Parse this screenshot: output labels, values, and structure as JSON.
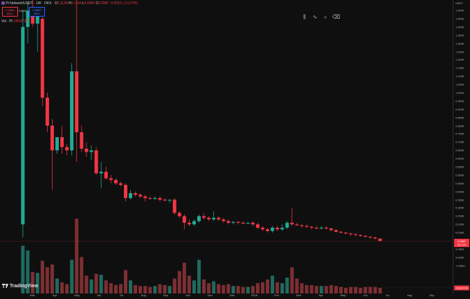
{
  "header": {
    "symbol_icon": "pi-icon",
    "symbol": "Pi Network/USDT · 1W · OKX",
    "ohlc": {
      "o_label": "O",
      "o": "0.1139",
      "h_label": "H",
      "h": "0.1144",
      "l_label": "L",
      "l": "0.0965",
      "c_label": "C",
      "c": "0.0987",
      "change": "-0.0151 (-13.27%)"
    },
    "sell": {
      "price": "0.0986",
      "label": "SELL"
    },
    "spread": "0.0001",
    "buy": {
      "price": "0.0987",
      "label": "BUY"
    },
    "volume_label": "Vol · PI",
    "volume_value": "138.873K"
  },
  "toolbar": [
    {
      "name": "candles-icon",
      "glyph": "⫼"
    },
    {
      "name": "line-icon",
      "glyph": "∿"
    },
    {
      "name": "compare-icon",
      "glyph": "⫟"
    },
    {
      "name": "eraser-icon",
      "glyph": "⌫"
    }
  ],
  "price_axis": {
    "currency": "USDT",
    "ticks": [
      "1.5000",
      "1.4500",
      "1.4000",
      "1.3500",
      "1.3000",
      "1.2500",
      "1.2000",
      "1.1500",
      "1.1000",
      "1.0500",
      "1.0000",
      "0.9500",
      "0.9000",
      "0.8500",
      "0.8000",
      "0.7500",
      "0.7000",
      "0.6500",
      "0.6000",
      "0.5500",
      "0.5000",
      "0.4500",
      "0.4000",
      "0.3500",
      "0.3000",
      "0.2500",
      "0.2000",
      "0.1500",
      "0.1000",
      "0.0500",
      "0.0000",
      "-0.0500"
    ],
    "current_price": "0.0987",
    "countdown": "3d 17h",
    "volume_label": "138.873K"
  },
  "time_axis": [
    "Mar",
    "Apr",
    "May",
    "Jun",
    "Jul",
    "Aug",
    "Sep",
    "Oct",
    "Nov",
    "Dec",
    "2026",
    "Feb",
    "Mar",
    "Apr",
    "May",
    "Jun",
    "Jul",
    "Aug",
    "Sep"
  ],
  "brand": {
    "name": "TradingView",
    "icon": "tradingview-logo-icon"
  },
  "colors": {
    "up": "#22ab94",
    "down": "#f23645",
    "vol_up": "#1e6b5f",
    "vol_down": "#7e2f33",
    "bg": "#0f0f0f"
  },
  "chart_data": {
    "type": "candlestick",
    "x_unit": "week",
    "candles": [
      {
        "o": 0.2,
        "h": 1.5,
        "l": 0.12,
        "c": 1.4,
        "v": 5.1
      },
      {
        "o": 1.4,
        "h": 1.55,
        "l": 1.3,
        "c": 1.5,
        "v": 4.6
      },
      {
        "o": 1.5,
        "h": 1.58,
        "l": 1.4,
        "c": 1.42,
        "v": 2.3
      },
      {
        "o": 1.42,
        "h": 1.47,
        "l": 1.25,
        "c": 1.47,
        "v": 2.2
      },
      {
        "o": 1.45,
        "h": 1.46,
        "l": 0.92,
        "c": 0.97,
        "v": 3.5
      },
      {
        "o": 0.97,
        "h": 1.0,
        "l": 0.76,
        "c": 0.8,
        "v": 2.8
      },
      {
        "o": 0.8,
        "h": 0.84,
        "l": 0.41,
        "c": 0.65,
        "v": 3.1
      },
      {
        "o": 0.65,
        "h": 0.73,
        "l": 0.63,
        "c": 0.73,
        "v": 1.6
      },
      {
        "o": 0.73,
        "h": 0.8,
        "l": 0.63,
        "c": 0.67,
        "v": 1.2
      },
      {
        "o": 0.67,
        "h": 0.69,
        "l": 0.62,
        "c": 0.65,
        "v": 1.0
      },
      {
        "o": 0.65,
        "h": 1.18,
        "l": 0.62,
        "c": 1.13,
        "v": 3.6
      },
      {
        "o": 1.13,
        "h": 1.9,
        "l": 0.58,
        "c": 0.76,
        "v": 8.0
      },
      {
        "o": 0.76,
        "h": 0.8,
        "l": 0.64,
        "c": 0.66,
        "v": 3.9
      },
      {
        "o": 0.66,
        "h": 0.7,
        "l": 0.61,
        "c": 0.64,
        "v": 1.9
      },
      {
        "o": 0.64,
        "h": 0.68,
        "l": 0.59,
        "c": 0.65,
        "v": 1.5
      },
      {
        "o": 0.65,
        "h": 0.67,
        "l": 0.5,
        "c": 0.51,
        "v": 2.1
      },
      {
        "o": 0.51,
        "h": 0.58,
        "l": 0.42,
        "c": 0.52,
        "v": 2.0
      },
      {
        "o": 0.52,
        "h": 0.55,
        "l": 0.47,
        "c": 0.48,
        "v": 1.4
      },
      {
        "o": 0.48,
        "h": 0.5,
        "l": 0.45,
        "c": 0.47,
        "v": 1.1
      },
      {
        "o": 0.47,
        "h": 0.48,
        "l": 0.44,
        "c": 0.45,
        "v": 0.9
      },
      {
        "o": 0.45,
        "h": 0.46,
        "l": 0.43,
        "c": 0.44,
        "v": 1.0
      },
      {
        "o": 0.44,
        "h": 0.45,
        "l": 0.34,
        "c": 0.36,
        "v": 2.5
      },
      {
        "o": 0.36,
        "h": 0.41,
        "l": 0.35,
        "c": 0.39,
        "v": 1.4
      },
      {
        "o": 0.39,
        "h": 0.4,
        "l": 0.37,
        "c": 0.38,
        "v": 0.9
      },
      {
        "o": 0.38,
        "h": 0.39,
        "l": 0.36,
        "c": 0.37,
        "v": 0.8
      },
      {
        "o": 0.37,
        "h": 0.38,
        "l": 0.34,
        "c": 0.36,
        "v": 0.8
      },
      {
        "o": 0.36,
        "h": 0.37,
        "l": 0.35,
        "c": 0.355,
        "v": 0.7
      },
      {
        "o": 0.355,
        "h": 0.37,
        "l": 0.35,
        "c": 0.36,
        "v": 0.8
      },
      {
        "o": 0.36,
        "h": 0.37,
        "l": 0.34,
        "c": 0.35,
        "v": 1.0
      },
      {
        "o": 0.35,
        "h": 0.36,
        "l": 0.34,
        "c": 0.345,
        "v": 0.9
      },
      {
        "o": 0.345,
        "h": 0.35,
        "l": 0.33,
        "c": 0.35,
        "v": 0.8
      },
      {
        "o": 0.35,
        "h": 0.36,
        "l": 0.26,
        "c": 0.27,
        "v": 1.6
      },
      {
        "o": 0.27,
        "h": 0.28,
        "l": 0.24,
        "c": 0.25,
        "v": 2.4
      },
      {
        "o": 0.25,
        "h": 0.26,
        "l": 0.17,
        "c": 0.21,
        "v": 3.3
      },
      {
        "o": 0.21,
        "h": 0.23,
        "l": 0.19,
        "c": 0.2,
        "v": 1.9
      },
      {
        "o": 0.2,
        "h": 0.23,
        "l": 0.19,
        "c": 0.22,
        "v": 1.4
      },
      {
        "o": 0.22,
        "h": 0.26,
        "l": 0.21,
        "c": 0.25,
        "v": 3.6
      },
      {
        "o": 0.25,
        "h": 0.27,
        "l": 0.23,
        "c": 0.24,
        "v": 1.5
      },
      {
        "o": 0.24,
        "h": 0.25,
        "l": 0.22,
        "c": 0.23,
        "v": 1.1
      },
      {
        "o": 0.23,
        "h": 0.28,
        "l": 0.22,
        "c": 0.24,
        "v": 1.3
      },
      {
        "o": 0.24,
        "h": 0.25,
        "l": 0.22,
        "c": 0.23,
        "v": 1.0
      },
      {
        "o": 0.23,
        "h": 0.24,
        "l": 0.21,
        "c": 0.22,
        "v": 0.9
      },
      {
        "o": 0.22,
        "h": 0.23,
        "l": 0.2,
        "c": 0.21,
        "v": 1.0
      },
      {
        "o": 0.21,
        "h": 0.22,
        "l": 0.2,
        "c": 0.215,
        "v": 0.8
      },
      {
        "o": 0.215,
        "h": 0.22,
        "l": 0.2,
        "c": 0.21,
        "v": 0.8
      },
      {
        "o": 0.21,
        "h": 0.22,
        "l": 0.2,
        "c": 0.205,
        "v": 0.7
      },
      {
        "o": 0.205,
        "h": 0.21,
        "l": 0.2,
        "c": 0.21,
        "v": 0.7
      },
      {
        "o": 0.21,
        "h": 0.22,
        "l": 0.19,
        "c": 0.2,
        "v": 0.8
      },
      {
        "o": 0.2,
        "h": 0.21,
        "l": 0.17,
        "c": 0.18,
        "v": 1.1
      },
      {
        "o": 0.18,
        "h": 0.19,
        "l": 0.16,
        "c": 0.17,
        "v": 1.2
      },
      {
        "o": 0.17,
        "h": 0.18,
        "l": 0.15,
        "c": 0.16,
        "v": 1.5
      },
      {
        "o": 0.16,
        "h": 0.19,
        "l": 0.15,
        "c": 0.18,
        "v": 1.9
      },
      {
        "o": 0.18,
        "h": 0.19,
        "l": 0.16,
        "c": 0.17,
        "v": 1.2
      },
      {
        "o": 0.17,
        "h": 0.2,
        "l": 0.16,
        "c": 0.18,
        "v": 1.1
      },
      {
        "o": 0.18,
        "h": 0.22,
        "l": 0.17,
        "c": 0.21,
        "v": 1.7
      },
      {
        "o": 0.21,
        "h": 0.3,
        "l": 0.19,
        "c": 0.2,
        "v": 2.8
      },
      {
        "o": 0.2,
        "h": 0.21,
        "l": 0.19,
        "c": 0.195,
        "v": 1.6
      },
      {
        "o": 0.195,
        "h": 0.2,
        "l": 0.18,
        "c": 0.19,
        "v": 1.1
      },
      {
        "o": 0.19,
        "h": 0.2,
        "l": 0.18,
        "c": 0.185,
        "v": 0.9
      },
      {
        "o": 0.185,
        "h": 0.19,
        "l": 0.17,
        "c": 0.18,
        "v": 0.9
      },
      {
        "o": 0.18,
        "h": 0.19,
        "l": 0.17,
        "c": 0.175,
        "v": 0.8
      },
      {
        "o": 0.175,
        "h": 0.19,
        "l": 0.17,
        "c": 0.18,
        "v": 0.8
      },
      {
        "o": 0.18,
        "h": 0.19,
        "l": 0.17,
        "c": 0.175,
        "v": 0.8
      },
      {
        "o": 0.175,
        "h": 0.18,
        "l": 0.16,
        "c": 0.165,
        "v": 0.9
      },
      {
        "o": 0.165,
        "h": 0.17,
        "l": 0.15,
        "c": 0.155,
        "v": 0.8
      },
      {
        "o": 0.155,
        "h": 0.16,
        "l": 0.145,
        "c": 0.15,
        "v": 0.7
      },
      {
        "o": 0.15,
        "h": 0.155,
        "l": 0.14,
        "c": 0.145,
        "v": 0.6
      },
      {
        "o": 0.145,
        "h": 0.15,
        "l": 0.13,
        "c": 0.14,
        "v": 0.7
      },
      {
        "o": 0.14,
        "h": 0.145,
        "l": 0.13,
        "c": 0.135,
        "v": 0.7
      },
      {
        "o": 0.135,
        "h": 0.14,
        "l": 0.125,
        "c": 0.13,
        "v": 0.6
      },
      {
        "o": 0.13,
        "h": 0.135,
        "l": 0.12,
        "c": 0.125,
        "v": 0.7
      },
      {
        "o": 0.125,
        "h": 0.13,
        "l": 0.115,
        "c": 0.12,
        "v": 0.7
      },
      {
        "o": 0.12,
        "h": 0.125,
        "l": 0.11,
        "c": 0.114,
        "v": 0.7
      },
      {
        "o": 0.1139,
        "h": 0.1144,
        "l": 0.0965,
        "c": 0.0987,
        "v": 0.6
      }
    ],
    "y_range": [
      -0.06,
      1.53
    ],
    "grid": false
  }
}
